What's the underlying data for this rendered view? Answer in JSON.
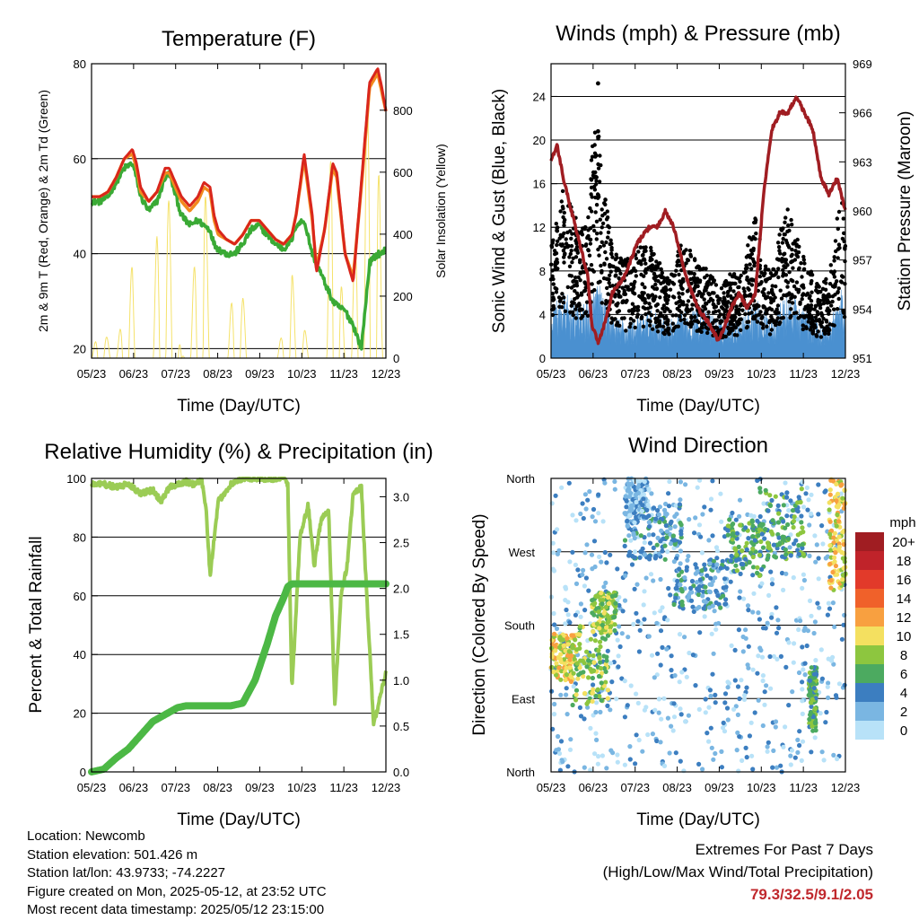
{
  "panels": {
    "temperature": {
      "title": "Temperature (F)",
      "ylabel_left": "2m & 9m T (Red, Orange) & 2m Td (Green)",
      "ylabel_right": "Solar Insolation (Yellow)",
      "xlabel": "Time (Day/UTC)"
    },
    "winds": {
      "title": "Winds (mph) & Pressure (mb)",
      "ylabel_left": "Sonic Wind & Gust (Blue, Black)",
      "ylabel_right": "Station Pressure (Maroon)",
      "xlabel": "Time (Day/UTC)"
    },
    "humidity": {
      "title": "Relative Humidity (%) & Precipitation (in)",
      "ylabel_left": "Percent & Total Rainfall",
      "xlabel": "Time (Day/UTC)"
    },
    "direction": {
      "title": "Wind Direction",
      "ylabel_left": "Direction (Colored By Speed)",
      "xlabel": "Time (Day/UTC)",
      "colorbar_title": "mph"
    }
  },
  "colors": {
    "temp2m": "#d9261c",
    "temp9m": "#f28a1e",
    "dewpoint": "#3aaa35",
    "solar": "#f5e26b",
    "wind": "#4a90d0",
    "gust": "#000000",
    "pressure": "#a01d22",
    "rh": "#9bcc55",
    "precip": "#4cb845",
    "extremes_text": "#c0282d"
  },
  "info": {
    "location": "Location: Newcomb",
    "elevation": "Station elevation: 501.426 m",
    "latlon": "Station lat/lon: 43.9733; -74.2227",
    "created": "Figure created on Mon, 2025-05-12, at 23:52 UTC",
    "recent": "Most recent data timestamp: 2025/05/12 23:15:00"
  },
  "extremes": {
    "line1": "Extremes For Past 7 Days",
    "line2": "(High/Low/Max Wind/Total Precipitation)",
    "values": "79.3/32.5/9.1/2.05"
  },
  "chart_data": [
    {
      "type": "line",
      "title": "Temperature (F)",
      "xlabel": "Time (Day/UTC)",
      "ylabel": "2m & 9m T (Red, Orange) & 2m Td (Green)",
      "ylabel_right": "Solar Insolation (Yellow)",
      "x_ticks": [
        "05/23",
        "06/23",
        "07/23",
        "08/23",
        "09/23",
        "10/23",
        "11/23",
        "12/23"
      ],
      "xlim": [
        0,
        7.2
      ],
      "ylim": [
        18,
        80
      ],
      "yticks": [
        20,
        40,
        60,
        80
      ],
      "ylim_right": [
        0,
        950
      ],
      "yticks_right": [
        0,
        200,
        400,
        600,
        800
      ],
      "grid": true,
      "x": [
        0,
        0.2,
        0.4,
        0.6,
        0.8,
        1.0,
        1.1,
        1.2,
        1.4,
        1.6,
        1.8,
        1.9,
        2.0,
        2.2,
        2.4,
        2.6,
        2.75,
        2.9,
        3.0,
        3.1,
        3.3,
        3.5,
        3.7,
        3.9,
        4.1,
        4.3,
        4.5,
        4.7,
        4.9,
        5.0,
        5.2,
        5.4,
        5.5,
        5.7,
        5.9,
        6.0,
        6.2,
        6.4,
        6.6,
        6.8,
        7.0,
        7.1,
        7.2
      ],
      "series": [
        {
          "values": [
            52,
            52,
            53,
            56,
            60,
            62,
            59,
            54,
            51,
            53,
            58,
            58,
            56,
            52,
            50,
            52,
            55,
            54,
            48,
            45,
            43,
            42,
            44,
            47,
            47,
            45,
            43,
            42,
            44,
            48,
            61,
            48,
            36,
            45,
            59,
            57,
            40,
            34,
            55,
            76,
            79,
            75,
            70
          ]
        },
        {
          "values": [
            52,
            52,
            53,
            56,
            60,
            61,
            58,
            53,
            51,
            53,
            57,
            57,
            55,
            51,
            49,
            51,
            54,
            53,
            47,
            44,
            43,
            42,
            44,
            47,
            47,
            45,
            43,
            42,
            44,
            48,
            60,
            47,
            37,
            45,
            58,
            56,
            40,
            35,
            54,
            75,
            78,
            74,
            70
          ]
        },
        {
          "values": [
            51,
            51,
            52,
            55,
            58,
            59,
            56,
            52,
            49,
            51,
            56,
            57,
            54,
            48,
            46,
            47,
            46,
            45,
            42,
            41,
            40,
            40,
            42,
            45,
            46,
            44,
            42,
            41,
            43,
            46,
            47,
            40,
            38,
            34,
            30,
            29,
            28,
            25,
            20,
            38,
            40,
            40,
            41
          ]
        },
        {
          "values": [
            0,
            120,
            60,
            0,
            200,
            300,
            80,
            0,
            0,
            400,
            600,
            500,
            300,
            0,
            50,
            500,
            700,
            100,
            0,
            0,
            0,
            300,
            200,
            0,
            0,
            0,
            0,
            100,
            300,
            100,
            100,
            0,
            0,
            0,
            900,
            600,
            0,
            300,
            600,
            900,
            800,
            200,
            0
          ]
        }
      ]
    },
    {
      "type": "scatter",
      "title": "Winds (mph) & Pressure (mb)",
      "xlabel": "Time (Day/UTC)",
      "ylabel": "Sonic Wind & Gust (Blue, Black)",
      "ylabel_right": "Station Pressure (Maroon)",
      "x_ticks": [
        "05/23",
        "06/23",
        "07/23",
        "08/23",
        "09/23",
        "10/23",
        "11/23",
        "12/23"
      ],
      "xlim": [
        0,
        7.2
      ],
      "ylim": [
        0,
        27
      ],
      "yticks": [
        0,
        4,
        8,
        12,
        16,
        20,
        24
      ],
      "ylim_right": [
        951,
        969
      ],
      "yticks_right": [
        951,
        954,
        957,
        960,
        963,
        966,
        969
      ],
      "grid": true,
      "x": [
        0,
        0.15,
        0.3,
        0.5,
        0.7,
        0.9,
        1.0,
        1.15,
        1.3,
        1.5,
        1.8,
        2.1,
        2.4,
        2.6,
        2.8,
        3.0,
        3.1,
        3.3,
        3.6,
        3.9,
        4.1,
        4.4,
        4.6,
        4.8,
        5.0,
        5.2,
        5.4,
        5.6,
        5.8,
        6.0,
        6.2,
        6.4,
        6.6,
        6.8,
        7.0,
        7.1,
        7.2
      ],
      "series": [
        {
          "values": [
            3,
            3.5,
            3.8,
            3.5,
            3,
            3.3,
            4,
            4.5,
            3.5,
            2.5,
            2.2,
            2.5,
            2.8,
            2.6,
            2.4,
            2.2,
            2.5,
            2.8,
            3,
            2.6,
            2.3,
            2.5,
            2.6,
            3,
            3.5,
            2.8,
            2.6,
            3.2,
            3.8,
            3.5,
            3,
            2.8,
            2,
            2.2,
            3.5,
            4,
            3
          ]
        },
        {
          "values": [
            8,
            10,
            12,
            11,
            9,
            10,
            15,
            17,
            12,
            8,
            7,
            8,
            8,
            7,
            6,
            6,
            8,
            8,
            7,
            6,
            5,
            6,
            6,
            8,
            10,
            7,
            6,
            9,
            11,
            9,
            7,
            6,
            5,
            6,
            10,
            12,
            8
          ]
        },
        {
          "values": [
            963,
            964,
            962,
            960,
            958,
            956,
            953,
            952,
            953,
            955,
            956,
            958,
            959,
            959,
            960,
            959,
            958,
            956,
            954,
            953,
            952,
            954,
            955,
            954,
            955,
            961,
            965,
            966,
            966,
            967,
            966,
            965,
            962,
            961,
            962,
            961,
            960
          ]
        }
      ]
    },
    {
      "type": "line",
      "title": "Relative Humidity (%) & Precipitation (in)",
      "xlabel": "Time (Day/UTC)",
      "ylabel": "Percent & Total Rainfall",
      "x_ticks": [
        "05/23",
        "06/23",
        "07/23",
        "08/23",
        "09/23",
        "10/23",
        "11/23",
        "12/23"
      ],
      "xlim": [
        0,
        7.2
      ],
      "ylim": [
        0,
        100
      ],
      "yticks": [
        0,
        20,
        40,
        60,
        80,
        100
      ],
      "ylim_right": [
        0,
        3.2
      ],
      "yticks_right": [
        0.0,
        0.5,
        1.0,
        1.5,
        2.0,
        2.5,
        3.0
      ],
      "grid": true,
      "x": [
        0,
        0.3,
        0.6,
        0.9,
        1.2,
        1.5,
        1.7,
        1.9,
        2.1,
        2.3,
        2.5,
        2.7,
        2.8,
        2.9,
        3.1,
        3.4,
        3.7,
        4.0,
        4.3,
        4.5,
        4.7,
        4.8,
        4.9,
        5.1,
        5.3,
        5.45,
        5.6,
        5.8,
        5.95,
        6.1,
        6.25,
        6.4,
        6.6,
        6.75,
        6.9,
        7.0,
        7.1,
        7.2
      ],
      "series": [
        {
          "values": [
            98,
            98,
            97,
            98,
            95,
            96,
            92,
            97,
            98,
            99,
            98,
            99,
            90,
            67,
            92,
            98,
            100,
            100,
            100,
            100,
            100,
            98,
            28,
            80,
            91,
            70,
            85,
            90,
            22,
            60,
            70,
            95,
            97,
            55,
            16,
            22,
            28,
            34
          ]
        },
        {
          "values": [
            0,
            0.03,
            0.15,
            0.25,
            0.4,
            0.55,
            0.6,
            0.65,
            0.7,
            0.72,
            0.72,
            0.72,
            0.72,
            0.72,
            0.72,
            0.72,
            0.75,
            1.0,
            1.4,
            1.7,
            1.9,
            2.02,
            2.05,
            2.05,
            2.05,
            2.05,
            2.05,
            2.05,
            2.05,
            2.05,
            2.05,
            2.05,
            2.05,
            2.05,
            2.05,
            2.05,
            2.05,
            2.05
          ]
        }
      ]
    },
    {
      "type": "scatter",
      "title": "Wind Direction",
      "xlabel": "Time (Day/UTC)",
      "ylabel": "Direction (Colored By Speed)",
      "x_ticks": [
        "05/23",
        "06/23",
        "07/23",
        "08/23",
        "09/23",
        "10/23",
        "11/23",
        "12/23"
      ],
      "y_ticks": [
        "North",
        "East",
        "South",
        "West",
        "North"
      ],
      "xlim": [
        0,
        7.2
      ],
      "ylim": [
        0,
        360
      ],
      "grid": true,
      "clusters": [
        {
          "x_range": [
            0,
            0.6
          ],
          "y_range": [
            110,
            170
          ],
          "speed": 5
        },
        {
          "x_range": [
            0.5,
            1.4
          ],
          "y_range": [
            80,
            180
          ],
          "speed": 4
        },
        {
          "x_range": [
            1.0,
            1.6
          ],
          "y_range": [
            170,
            220
          ],
          "speed": 4
        },
        {
          "x_range": [
            1.8,
            3.2
          ],
          "y_range": [
            260,
            330
          ],
          "speed": 2
        },
        {
          "x_range": [
            1.8,
            2.4
          ],
          "y_range": [
            300,
            360
          ],
          "speed": 1
        },
        {
          "x_range": [
            3.0,
            4.3
          ],
          "y_range": [
            200,
            260
          ],
          "speed": 2
        },
        {
          "x_range": [
            4.3,
            5.2
          ],
          "y_range": [
            240,
            310
          ],
          "speed": 3
        },
        {
          "x_range": [
            5.1,
            6.2
          ],
          "y_range": [
            260,
            350
          ],
          "speed": 3
        },
        {
          "x_range": [
            6.3,
            6.5
          ],
          "y_range": [
            50,
            130
          ],
          "speed": 3
        },
        {
          "x_range": [
            6.8,
            7.2
          ],
          "y_range": [
            220,
            360
          ],
          "speed": 5
        }
      ],
      "colorbar": {
        "title": "mph",
        "levels": [
          "20+",
          "18",
          "16",
          "14",
          "12",
          "10",
          "8",
          "6",
          "4",
          "2",
          "0"
        ],
        "colors": [
          "#a01d22",
          "#c0232a",
          "#e23a2a",
          "#f0612a",
          "#f8a040",
          "#f4e060",
          "#8dc63f",
          "#4caa60",
          "#3c7ec0",
          "#7ab6e2",
          "#b8e2f8"
        ]
      }
    }
  ]
}
